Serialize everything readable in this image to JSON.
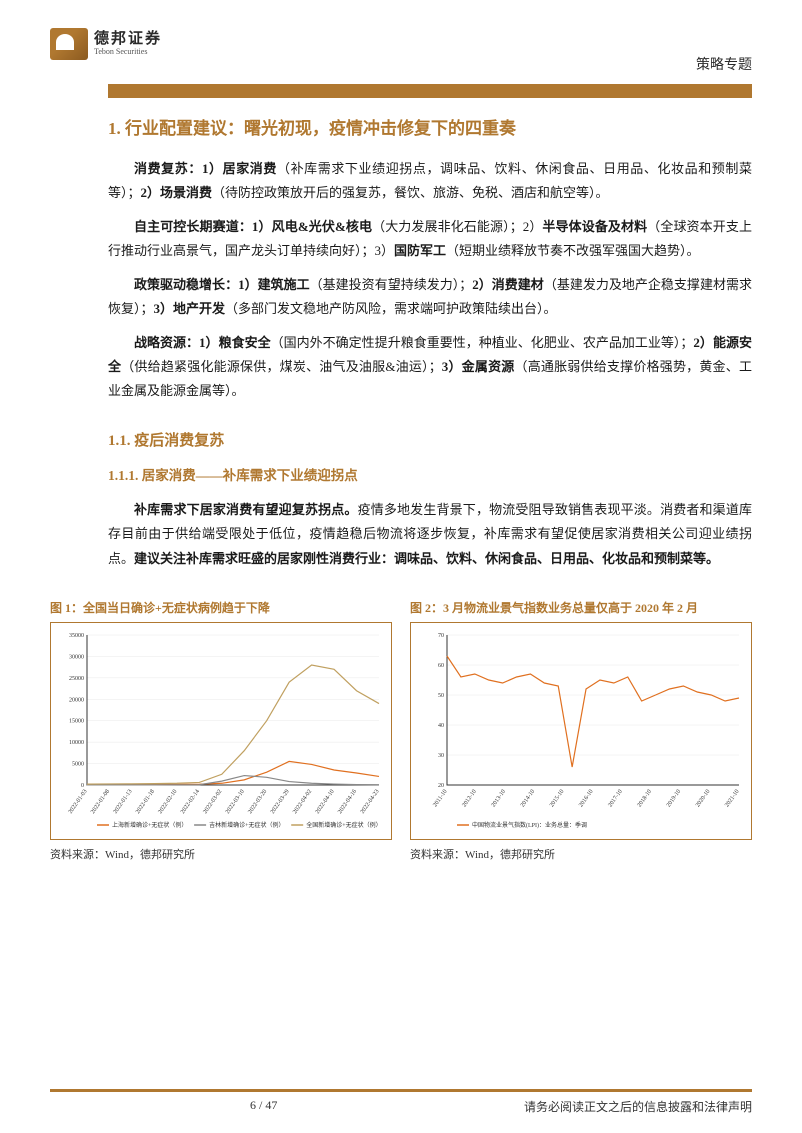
{
  "header": {
    "logo_cn": "德邦证券",
    "logo_en": "Tebon Securities",
    "doc_type": "策略专题"
  },
  "section1": {
    "title": "1. 行业配置建议：曙光初现，疫情冲击修复下的四重奏",
    "p1_lead": "消费复苏：1）居家消费",
    "p1_body": "（补库需求下业绩迎拐点，调味品、饮料、休闲食品、日用品、化妆品和预制菜等）；",
    "p1_lead2": "2）场景消费",
    "p1_body2": "（待防控政策放开后的强复苏，餐饮、旅游、免税、酒店和航空等）。",
    "p2_lead": "自主可控长期赛道：1）风电&光伏&核电",
    "p2_body": "（大力发展非化石能源）；2）",
    "p2_lead2": "半导体设备及材料",
    "p2_body2": "（全球资本开支上行推动行业高景气，国产龙头订单持续向好）；3）",
    "p2_lead3": "国防军工",
    "p2_body3": "（短期业绩释放节奏不改强军强国大趋势）。",
    "p3_lead": "政策驱动稳增长：1）建筑施工",
    "p3_body": "（基建投资有望持续发力）；",
    "p3_lead2": "2）消费建材",
    "p3_body2": "（基建发力及地产企稳支撑建材需求恢复）；",
    "p3_lead3": "3）地产开发",
    "p3_body3": "（多部门发文稳地产防风险，需求端呵护政策陆续出台）。",
    "p4_lead": "战略资源：1）粮食安全",
    "p4_body": "（国内外不确定性提升粮食重要性，种植业、化肥业、农产品加工业等）；",
    "p4_lead2": "2）能源安全",
    "p4_body2": "（供给趋紧强化能源保供，煤炭、油气及油服&油运）；",
    "p4_lead3": "3）金属资源",
    "p4_body3": "（高通胀弱供给支撑价格强势，黄金、工业金属及能源金属等）。"
  },
  "section11": {
    "title": "1.1. 疫后消费复苏",
    "sub_title": "1.1.1. 居家消费——补库需求下业绩迎拐点",
    "p_lead": "补库需求下居家消费有望迎复苏拐点。",
    "p_body": "疫情多地发生背景下，物流受阻导致销售表现平淡。消费者和渠道库存目前由于供给端受限处于低位，疫情趋稳后物流将逐步恢复，补库需求有望促使居家消费相关公司迎业绩拐点。",
    "p_bold2": "建议关注补库需求旺盛的居家刚性消费行业：调味品、饮料、休闲食品、日用品、化妆品和预制菜等。"
  },
  "chart1": {
    "title": "图 1：全国当日确诊+无症状病例趋于下降",
    "source": "资料来源：Wind，德邦研究所",
    "ylim": [
      0,
      35000
    ],
    "ytick_step": 5000,
    "x_labels": [
      "2022-01-03",
      "2022-01-08",
      "2022-01-13",
      "2022-01-18",
      "2022-02-10",
      "2022-02-14",
      "2022-03-02",
      "2022-03-10",
      "2022-03-20",
      "2022-03-29",
      "2022-04-02",
      "2022-04-10",
      "2022-04-16",
      "2022-04-23"
    ],
    "series": [
      {
        "name": "上海新增确诊+无症状（例）",
        "color": "#e07020",
        "values": [
          50,
          80,
          100,
          120,
          150,
          180,
          400,
          1200,
          3000,
          5500,
          4800,
          3500,
          2800,
          2000
        ]
      },
      {
        "name": "吉林新增确诊+无症状（例）",
        "color": "#888888",
        "values": [
          20,
          25,
          30,
          35,
          40,
          60,
          900,
          2200,
          1800,
          800,
          400,
          200,
          100,
          50
        ]
      },
      {
        "name": "全国新增确诊+无症状（例）",
        "color": "#c0a060",
        "values": [
          200,
          250,
          280,
          320,
          400,
          600,
          2500,
          8000,
          15000,
          24000,
          28000,
          27000,
          22000,
          19000
        ]
      }
    ],
    "grid_color": "#e8e8e8",
    "axis_color": "#333333",
    "label_fontsize": 6
  },
  "chart2": {
    "title": "图 2：3 月物流业景气指数业务总量仅高于 2020 年 2 月",
    "source": "资料来源：Wind，德邦研究所",
    "ylim": [
      20,
      70
    ],
    "ytick_step": 10,
    "x_labels": [
      "2011-10",
      "2012-10",
      "2013-10",
      "2014-10",
      "2015-10",
      "2016-10",
      "2017-10",
      "2018-10",
      "2019-10",
      "2020-10",
      "2021-10"
    ],
    "series": [
      {
        "name": "中国物流业景气指数(LPI)：业务总量：季调",
        "color": "#e07020",
        "values": [
          63,
          56,
          57,
          55,
          54,
          56,
          57,
          54,
          53,
          26,
          52,
          55,
          54,
          56,
          48,
          50,
          52,
          53,
          51,
          50,
          48,
          49
        ]
      }
    ],
    "grid_color": "#e8e8e8",
    "axis_color": "#333333",
    "label_fontsize": 6
  },
  "footer": {
    "page": "6 / 47",
    "disclaimer": "请务必阅读正文之后的信息披露和法律声明"
  },
  "colors": {
    "accent": "#b07830",
    "text": "#1a1a1a"
  }
}
